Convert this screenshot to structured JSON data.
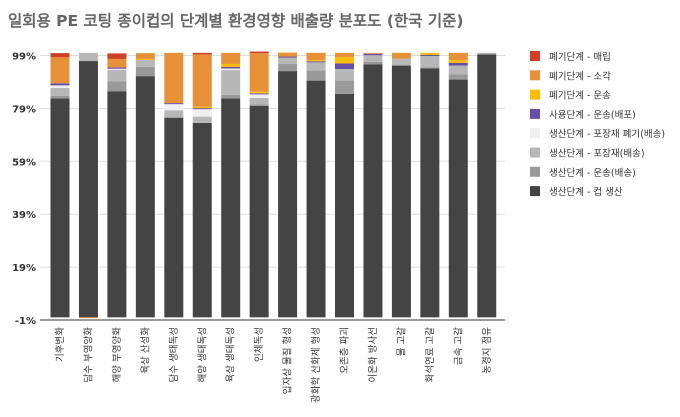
{
  "chart_data": {
    "type": "bar",
    "stacked": true,
    "title": "일회용 PE 코팅 종이컵의 단계별 환경영향 배출량 분포도 (한국 기준)",
    "xlabel": "",
    "ylabel": "",
    "ylim": [
      -1,
      99
    ],
    "yticks": [
      "-1%",
      "19%",
      "39%",
      "59%",
      "79%",
      "99%"
    ],
    "ytick_values": [
      -1,
      19,
      39,
      59,
      79,
      99
    ],
    "grid": true,
    "legend_position": "right",
    "categories": [
      "기후변화",
      "담수 부영양화",
      "해양 부영양화",
      "육상 산성화",
      "담수 생태독성",
      "해양 생태독성",
      "육상 생태독성",
      "인체독성",
      "입자상 물질 형성",
      "광화학 산화제 형성",
      "오존층 파괴",
      "이온화 방사선",
      "물 고갈",
      "화석연료 고갈",
      "금속 고갈",
      "농경지 점유"
    ],
    "series": [
      {
        "name": "생산단계 - 컵 생산",
        "color": "#444444",
        "values": [
          82.8,
          96.9,
          85.5,
          91.2,
          75.5,
          73.5,
          82.8,
          79.9,
          93.1,
          89.5,
          84.5,
          95.6,
          95.2,
          94.1,
          89.9,
          99.4
        ]
      },
      {
        "name": "생산단계 - 운송(배송)",
        "color": "#999999",
        "values": [
          1.0,
          0,
          3.8,
          3.5,
          0,
          0,
          1.3,
          0.6,
          2.8,
          3.9,
          5.0,
          1.0,
          0,
          0.5,
          1.9,
          0
        ]
      },
      {
        "name": "생산단계 - 포장재(배송)",
        "color": "#b7b7b7",
        "values": [
          2.9,
          3.1,
          4.3,
          2.6,
          2.8,
          2.4,
          9.4,
          2.5,
          2.3,
          3.0,
          4.4,
          2.5,
          2.6,
          4.2,
          3.4,
          0.6
        ]
      },
      {
        "name": "생산단계 - 포장재 폐기(배송)",
        "color": "#efefef",
        "values": [
          1.0,
          0,
          0.4,
          0,
          2.3,
          2.8,
          0.6,
          1.3,
          0,
          0,
          0,
          0,
          0,
          0,
          0,
          0
        ]
      },
      {
        "name": "사용단계 - 운송(배포)",
        "color": "#674ea7",
        "values": [
          0.8,
          0,
          0.5,
          0,
          0.4,
          0.4,
          0.6,
          0.4,
          0.4,
          0.4,
          2.1,
          0.5,
          0,
          0.4,
          1.0,
          0
        ]
      },
      {
        "name": "폐기단계 - 운송",
        "color": "#fbbc04",
        "values": [
          0,
          0,
          0,
          0.4,
          0,
          0.5,
          1.1,
          0.6,
          0,
          0.4,
          2.4,
          0,
          0,
          0.8,
          1.0,
          0
        ]
      },
      {
        "name": "폐기단계 - 소각",
        "color": "#e69138",
        "values": [
          9.8,
          -0.3,
          3.2,
          2.2,
          19.0,
          19.8,
          4.2,
          14.6,
          1.5,
          2.8,
          1.6,
          0.4,
          2.2,
          0,
          2.8,
          0
        ]
      },
      {
        "name": "폐기단계 - 매립",
        "color": "#cc4125",
        "values": [
          1.6,
          0,
          2.1,
          0,
          0,
          0.6,
          0,
          0.6,
          0,
          0,
          0,
          0,
          0,
          0,
          0,
          0
        ]
      }
    ]
  }
}
